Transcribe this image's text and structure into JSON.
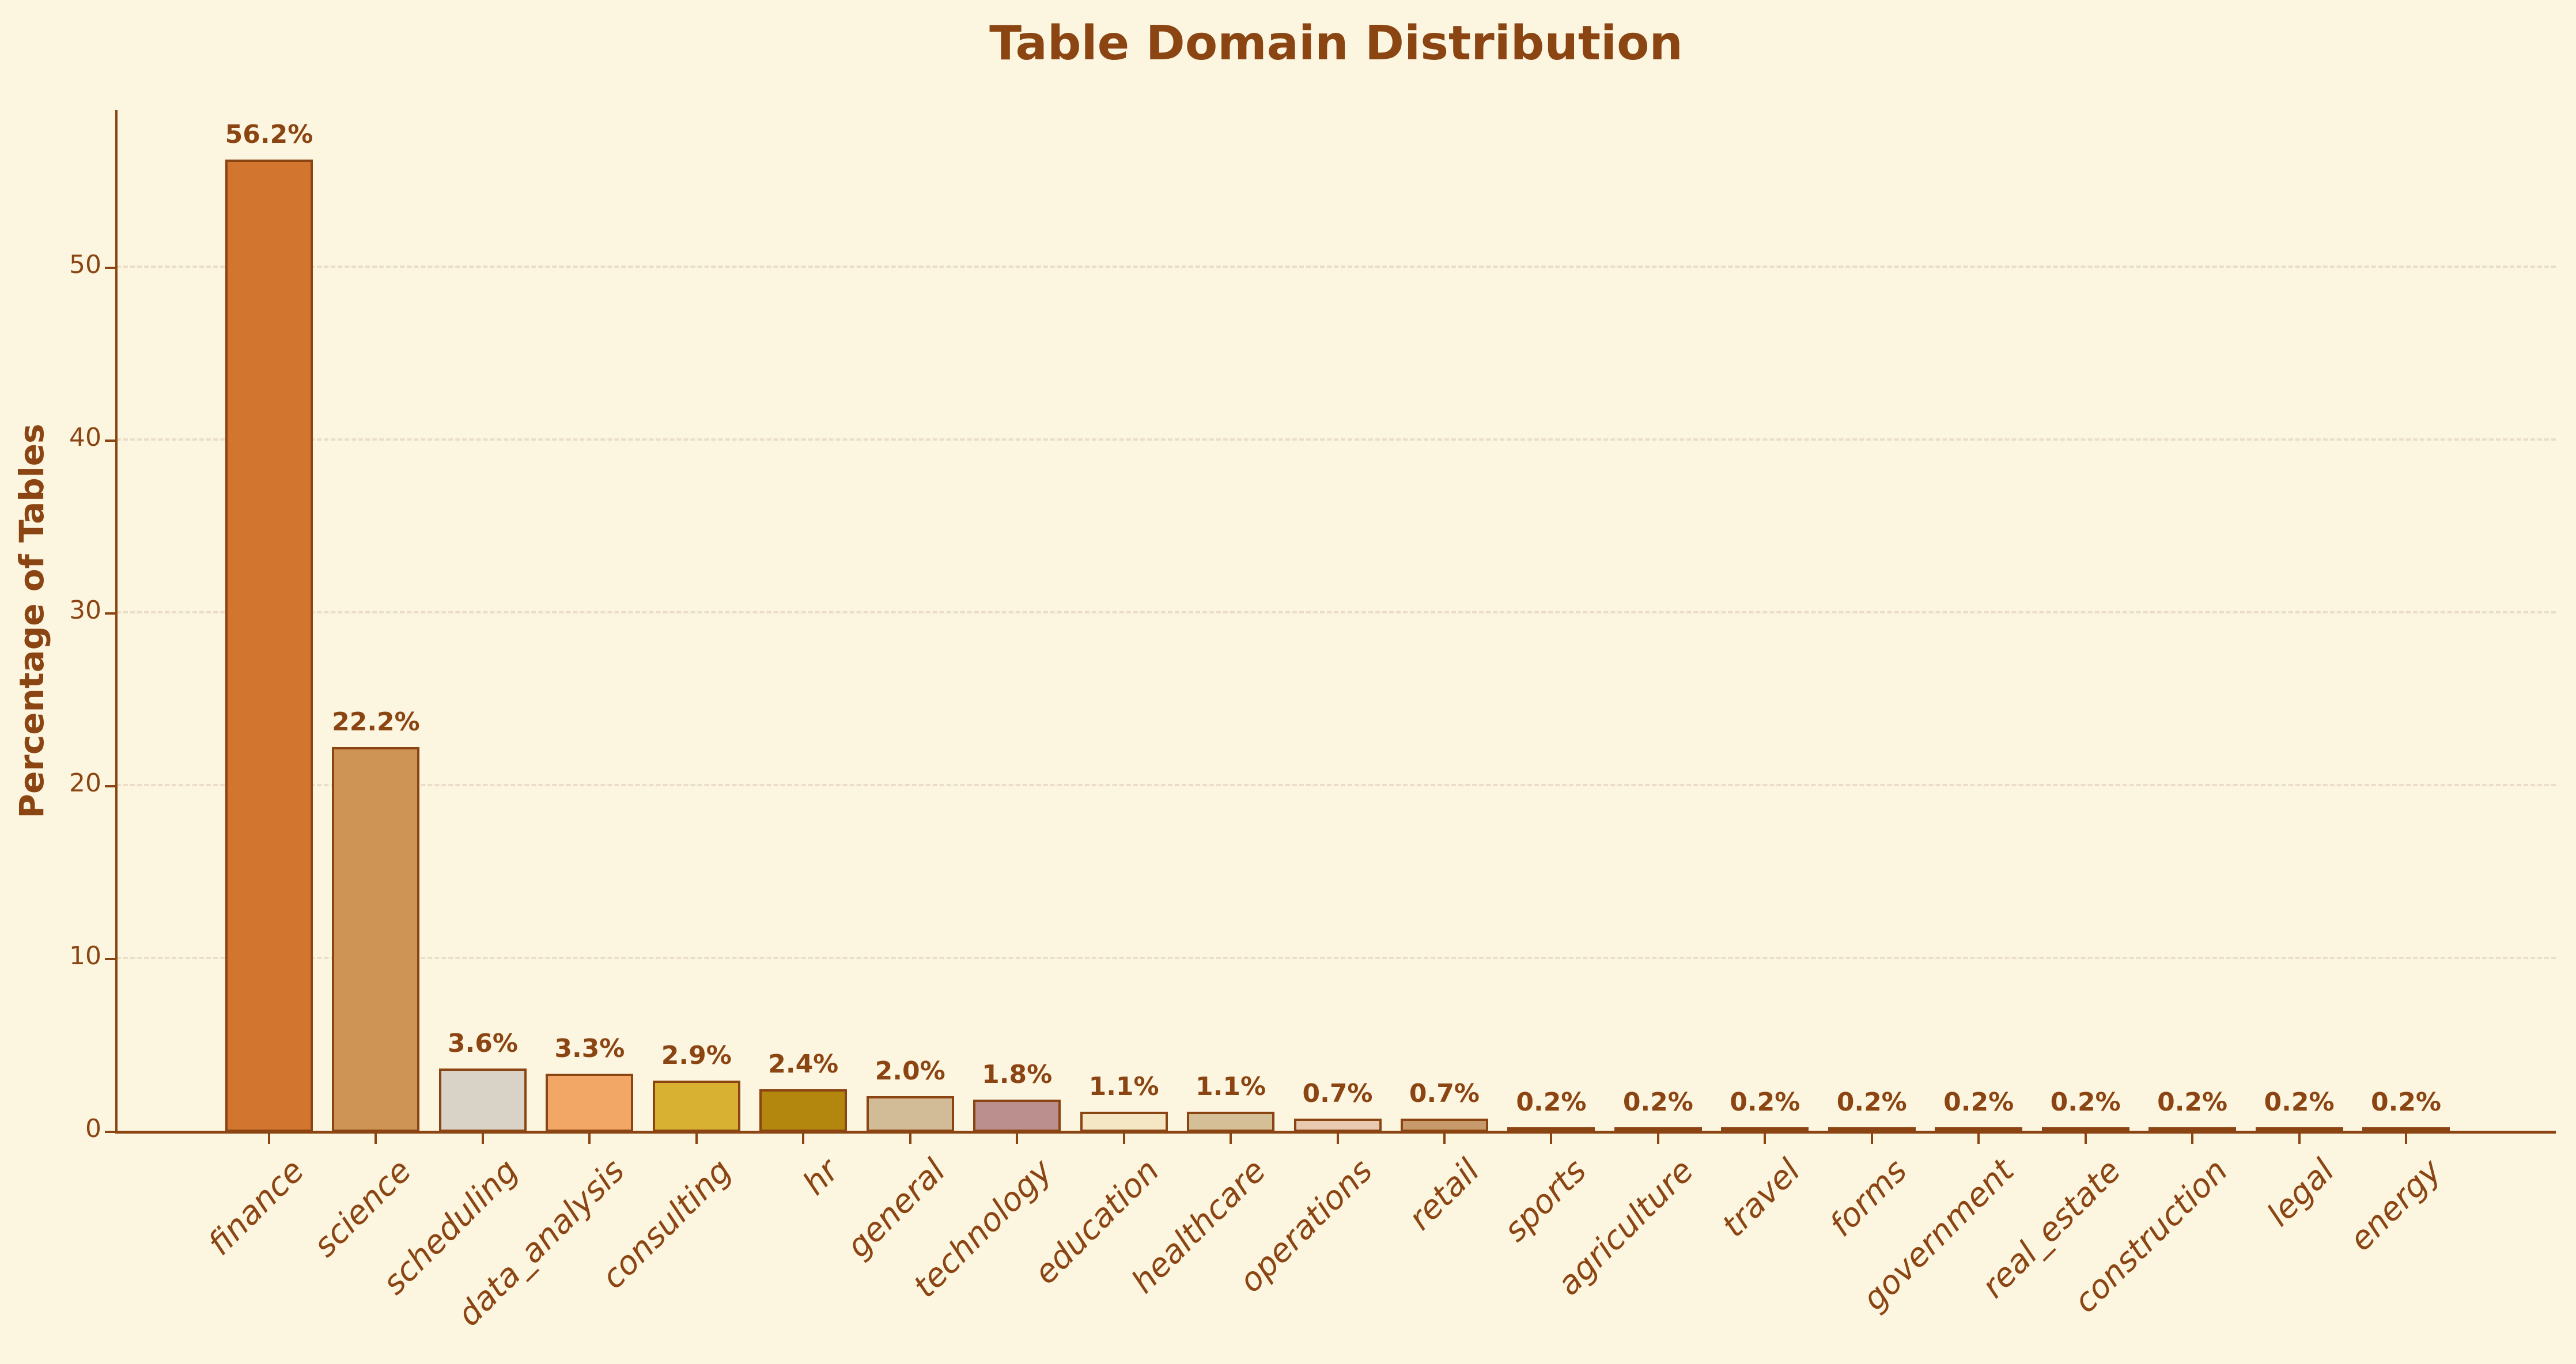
{
  "colors": {
    "background": "#FCF5E0",
    "text": "#8B4513",
    "axis": "#8B4513",
    "grid": "#EADEC6",
    "bar_edge": "#8B4513"
  },
  "chart_data": {
    "type": "bar",
    "title": "Table Domain Distribution",
    "xlabel": "",
    "ylabel": "Percentage of Tables",
    "categories": [
      "finance",
      "science",
      "scheduling",
      "data_analysis",
      "consulting",
      "hr",
      "general",
      "technology",
      "education",
      "healthcare",
      "operations",
      "retail",
      "sports",
      "agriculture",
      "travel",
      "forms",
      "government",
      "real_estate",
      "construction",
      "legal",
      "energy"
    ],
    "values": [
      56.2,
      22.2,
      3.6,
      3.3,
      2.9,
      2.4,
      2.0,
      1.8,
      1.1,
      1.1,
      0.7,
      0.7,
      0.2,
      0.2,
      0.2,
      0.2,
      0.2,
      0.2,
      0.2,
      0.2,
      0.2
    ],
    "bar_labels": [
      "56.2%",
      "22.2%",
      "3.6%",
      "3.3%",
      "2.9%",
      "2.4%",
      "2.0%",
      "1.8%",
      "1.1%",
      "1.1%",
      "0.7%",
      "0.7%",
      "0.2%",
      "0.2%",
      "0.2%",
      "0.2%",
      "0.2%",
      "0.2%",
      "0.2%",
      "0.2%",
      "0.2%"
    ],
    "bar_colors": [
      "#D2752E",
      "#CD9456",
      "#D8D3C6",
      "#F2A767",
      "#D8B133",
      "#B3860E",
      "#D2BC98",
      "#BC8F8F",
      "#F5E6C4",
      "#D5BF97",
      "#E8CAB0",
      "#C69A6A",
      "#A0522D",
      "#6B6A55",
      "#8A8A8A",
      "#62625A",
      "#97948C",
      "#A9A7B0",
      "#C2692F",
      "#C87A40",
      "#D9D2C2"
    ],
    "yticks": [
      0,
      10,
      20,
      30,
      40,
      50
    ],
    "gridline_values": [
      10,
      20,
      30,
      40,
      50
    ],
    "ylim": [
      0,
      59.1
    ],
    "grid": "horizontal-dashed",
    "legend": "none"
  }
}
